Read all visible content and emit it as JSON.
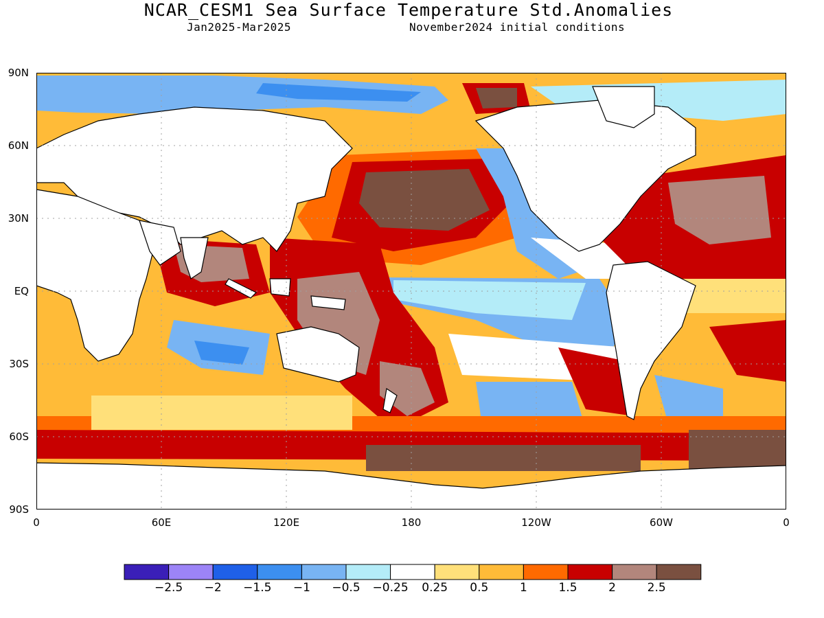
{
  "title": "NCAR_CESM1 Sea Surface Temperature Std.Anomalies",
  "subtitle_left": "Jan2025-Mar2025",
  "subtitle_right": "November2024 initial conditions",
  "lat_labels": [
    "90N",
    "60N",
    "30N",
    "EQ",
    "30S",
    "60S",
    "90S"
  ],
  "lon_labels": [
    "0",
    "60E",
    "120E",
    "180",
    "120W",
    "60W",
    "0"
  ],
  "colorbar": {
    "colors": [
      "#3a1fb8",
      "#9c84f7",
      "#1f60e8",
      "#3c8ff0",
      "#78b4f3",
      "#b4ecf8",
      "#ffffff",
      "#ffe07a",
      "#ffbb38",
      "#ff6a00",
      "#c80000",
      "#b2867c",
      "#7a5040"
    ],
    "labels": [
      "-2.5",
      "-2",
      "-1.5",
      "-1",
      "-0.5",
      "-0.25",
      "0.25",
      "0.5",
      "1",
      "1.5",
      "2",
      "2.5"
    ]
  },
  "map_colors": {
    "land": "#ffffff",
    "ocean_base": "#ffbb38",
    "coast": "#000000",
    "grid": "#a0a0a0"
  }
}
